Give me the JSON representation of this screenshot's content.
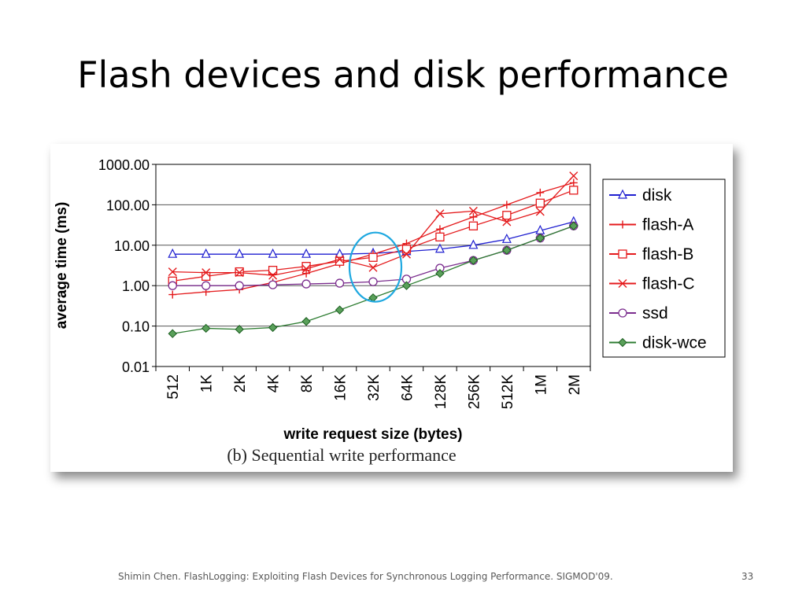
{
  "slide": {
    "title": "Flash devices and disk performance",
    "footer": "Shimin Chen. FlashLogging: Exploiting Flash Devices for Synchronous Logging Performance. SIGMOD'09.",
    "page_number": "33"
  },
  "chart_data": {
    "type": "line",
    "caption": "(b) Sequential write performance",
    "xlabel": "write request size (bytes)",
    "ylabel": "average time (ms)",
    "y_scale": "log",
    "ylim": [
      0.01,
      1000
    ],
    "y_ticks": [
      {
        "value": 1000,
        "label": "1000.00"
      },
      {
        "value": 100,
        "label": "100.00"
      },
      {
        "value": 10,
        "label": "10.00"
      },
      {
        "value": 1,
        "label": "1.00"
      },
      {
        "value": 0.1,
        "label": "0.10"
      },
      {
        "value": 0.01,
        "label": "0.01"
      }
    ],
    "grid": true,
    "legend_position": "right",
    "categories": [
      "512",
      "1K",
      "2K",
      "4K",
      "8K",
      "16K",
      "32K",
      "64K",
      "128K",
      "256K",
      "512K",
      "1M",
      "2M"
    ],
    "series": [
      {
        "name": "disk",
        "color": "#1f1fd0",
        "marker": "triangle",
        "values": [
          6,
          6,
          6,
          6,
          6,
          6,
          6.3,
          7,
          8,
          10,
          14,
          23,
          38
        ]
      },
      {
        "name": "flash-A",
        "color": "#e41a1c",
        "marker": "plus",
        "values": [
          0.6,
          0.7,
          0.8,
          1.2,
          2,
          3.5,
          6,
          11,
          25,
          50,
          100,
          200,
          350
        ]
      },
      {
        "name": "flash-B",
        "color": "#e41a1c",
        "marker": "square",
        "values": [
          1.3,
          1.7,
          2.2,
          2.4,
          3,
          4,
          5,
          8,
          16,
          30,
          55,
          110,
          230
        ]
      },
      {
        "name": "flash-C",
        "color": "#e41a1c",
        "marker": "x",
        "values": [
          2.2,
          2.1,
          2.1,
          1.8,
          2.6,
          4.5,
          2.8,
          6,
          60,
          70,
          38,
          68,
          520
        ]
      },
      {
        "name": "ssd",
        "color": "#7b2d8e",
        "marker": "circle",
        "values": [
          1.0,
          1.0,
          1.0,
          1.05,
          1.1,
          1.15,
          1.25,
          1.45,
          2.7,
          4.2,
          7.5,
          15,
          30
        ]
      },
      {
        "name": "disk-wce",
        "color": "#2e7d32",
        "marker": "diamond",
        "values": [
          0.065,
          0.088,
          0.083,
          0.092,
          0.13,
          0.25,
          0.5,
          1.0,
          2.0,
          4.2,
          7.5,
          15,
          30
        ]
      }
    ],
    "annotation": {
      "type": "ellipse",
      "color": "#1ea8e0",
      "x_category": "32K",
      "y_value": 3
    }
  }
}
